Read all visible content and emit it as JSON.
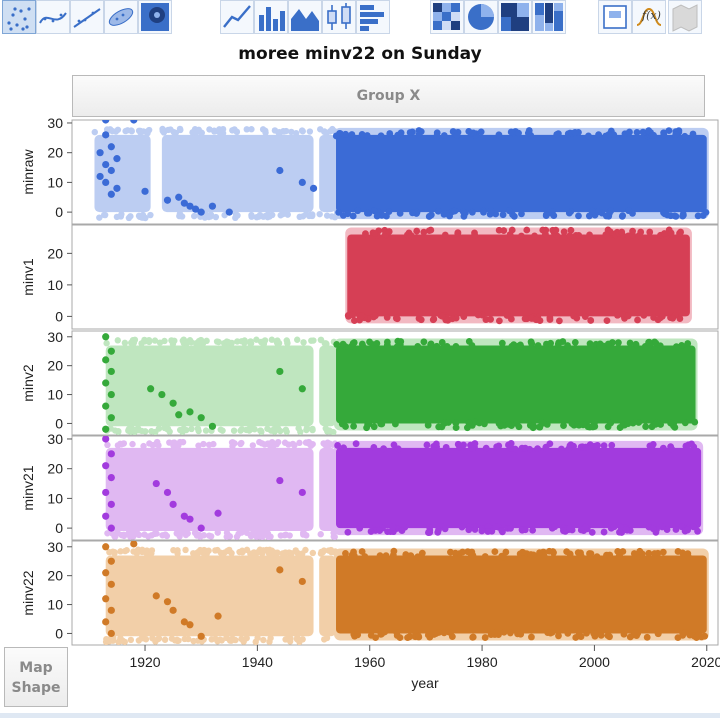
{
  "title": "moree minv22 on Sunday",
  "group_x_label": "Group X",
  "map_shape_label": [
    "Map",
    "Shape"
  ],
  "toolbar": {
    "icons": [
      "points-icon",
      "smoother-icon",
      "line-fit-icon",
      "ellipse-icon",
      "contour-icon",
      "line-icon",
      "bar-icon",
      "area-icon",
      "box-plot-icon",
      "histogram-icon",
      "heatmap-icon",
      "pie-icon",
      "treemap-icon",
      "mosaic-icon",
      "caption-box-icon",
      "formula-icon",
      "map-icon"
    ]
  },
  "chart_data": {
    "type": "scatter",
    "xlabel": "year",
    "xlim": [
      1907,
      2022
    ],
    "xticks": [
      1920,
      1940,
      1960,
      1980,
      2000,
      2020
    ],
    "panels": [
      {
        "name": "minraw",
        "ylim": [
          -4,
          31
        ],
        "yticks": [
          0,
          10,
          20,
          30
        ],
        "color_dark": "#3b6bd6",
        "color_light": "#bccdf2",
        "light_segments": [
          [
            1911,
            1921
          ],
          [
            1923,
            1950
          ],
          [
            1951,
            1954
          ]
        ],
        "light_range": [
          -1,
          27
        ],
        "dark_range": [
          1954,
          2020
        ],
        "dark_yrange": [
          0,
          26
        ],
        "outliers": [
          [
            1913,
            31
          ],
          [
            1913,
            26
          ],
          [
            1914,
            22
          ],
          [
            1912,
            20
          ],
          [
            1915,
            18
          ],
          [
            1913,
            16
          ],
          [
            1914,
            14
          ],
          [
            1912,
            12
          ],
          [
            1913,
            10
          ],
          [
            1915,
            8
          ],
          [
            1914,
            6
          ],
          [
            1920,
            7
          ],
          [
            1924,
            4
          ],
          [
            1926,
            5
          ],
          [
            1927,
            3
          ],
          [
            1928,
            2
          ],
          [
            1929,
            1
          ],
          [
            1930,
            0
          ],
          [
            1932,
            2
          ],
          [
            1935,
            0
          ],
          [
            1944,
            14
          ],
          [
            1948,
            10
          ],
          [
            1950,
            8
          ],
          [
            1918,
            31
          ]
        ]
      },
      {
        "name": "minv1",
        "ylim": [
          -4,
          29
        ],
        "yticks": [
          0,
          10,
          20
        ],
        "color_dark": "#d63f55",
        "color_light": "#f2b9c2",
        "light_segments": [],
        "light_range": [
          -1,
          27
        ],
        "dark_range": [
          1956,
          2017
        ],
        "dark_yrange": [
          0,
          26
        ],
        "outliers": []
      },
      {
        "name": "minv2",
        "ylim": [
          -4,
          32
        ],
        "yticks": [
          0,
          10,
          20,
          30
        ],
        "color_dark": "#35a93a",
        "color_light": "#bfe6bf",
        "light_segments": [
          [
            1913,
            1950
          ],
          [
            1951,
            1954
          ]
        ],
        "light_range": [
          -2,
          28
        ],
        "dark_range": [
          1954,
          2018
        ],
        "dark_yrange": [
          0,
          27
        ],
        "outliers": [
          [
            1913,
            30
          ],
          [
            1914,
            25
          ],
          [
            1913,
            22
          ],
          [
            1914,
            18
          ],
          [
            1913,
            14
          ],
          [
            1914,
            10
          ],
          [
            1913,
            6
          ],
          [
            1914,
            2
          ],
          [
            1921,
            12
          ],
          [
            1923,
            10
          ],
          [
            1925,
            7
          ],
          [
            1926,
            3
          ],
          [
            1928,
            4
          ],
          [
            1930,
            2
          ],
          [
            1932,
            -1
          ],
          [
            1944,
            18
          ],
          [
            1948,
            12
          ],
          [
            1913,
            -2
          ]
        ]
      },
      {
        "name": "minv21",
        "ylim": [
          -4,
          31
        ],
        "yticks": [
          0,
          10,
          20,
          30
        ],
        "color_dark": "#a23bde",
        "color_light": "#e0b8f2",
        "light_segments": [
          [
            1913,
            1950
          ],
          [
            1951,
            1954
          ]
        ],
        "light_range": [
          -2,
          28
        ],
        "dark_range": [
          1954,
          2019
        ],
        "dark_yrange": [
          0,
          27
        ],
        "outliers": [
          [
            1913,
            30
          ],
          [
            1914,
            25
          ],
          [
            1913,
            21
          ],
          [
            1914,
            17
          ],
          [
            1913,
            12
          ],
          [
            1914,
            8
          ],
          [
            1913,
            4
          ],
          [
            1914,
            0
          ],
          [
            1922,
            15
          ],
          [
            1924,
            12
          ],
          [
            1925,
            8
          ],
          [
            1927,
            4
          ],
          [
            1928,
            3
          ],
          [
            1930,
            0
          ],
          [
            1933,
            5
          ],
          [
            1944,
            16
          ],
          [
            1948,
            12
          ]
        ]
      },
      {
        "name": "minv22",
        "ylim": [
          -4,
          32
        ],
        "yticks": [
          0,
          10,
          20,
          30
        ],
        "color_dark": "#d07a27",
        "color_light": "#f2cfa8",
        "light_segments": [
          [
            1913,
            1950
          ],
          [
            1951,
            1954
          ]
        ],
        "light_range": [
          -2,
          28
        ],
        "dark_range": [
          1954,
          2020
        ],
        "dark_yrange": [
          0,
          27
        ],
        "outliers": [
          [
            1913,
            30
          ],
          [
            1914,
            25
          ],
          [
            1913,
            21
          ],
          [
            1914,
            17
          ],
          [
            1913,
            12
          ],
          [
            1914,
            8
          ],
          [
            1913,
            4
          ],
          [
            1914,
            0
          ],
          [
            1922,
            13
          ],
          [
            1924,
            11
          ],
          [
            1925,
            8
          ],
          [
            1927,
            4
          ],
          [
            1928,
            3
          ],
          [
            1930,
            -1
          ],
          [
            1933,
            6
          ],
          [
            1944,
            22
          ],
          [
            1948,
            18
          ],
          [
            1918,
            31
          ]
        ]
      }
    ]
  }
}
